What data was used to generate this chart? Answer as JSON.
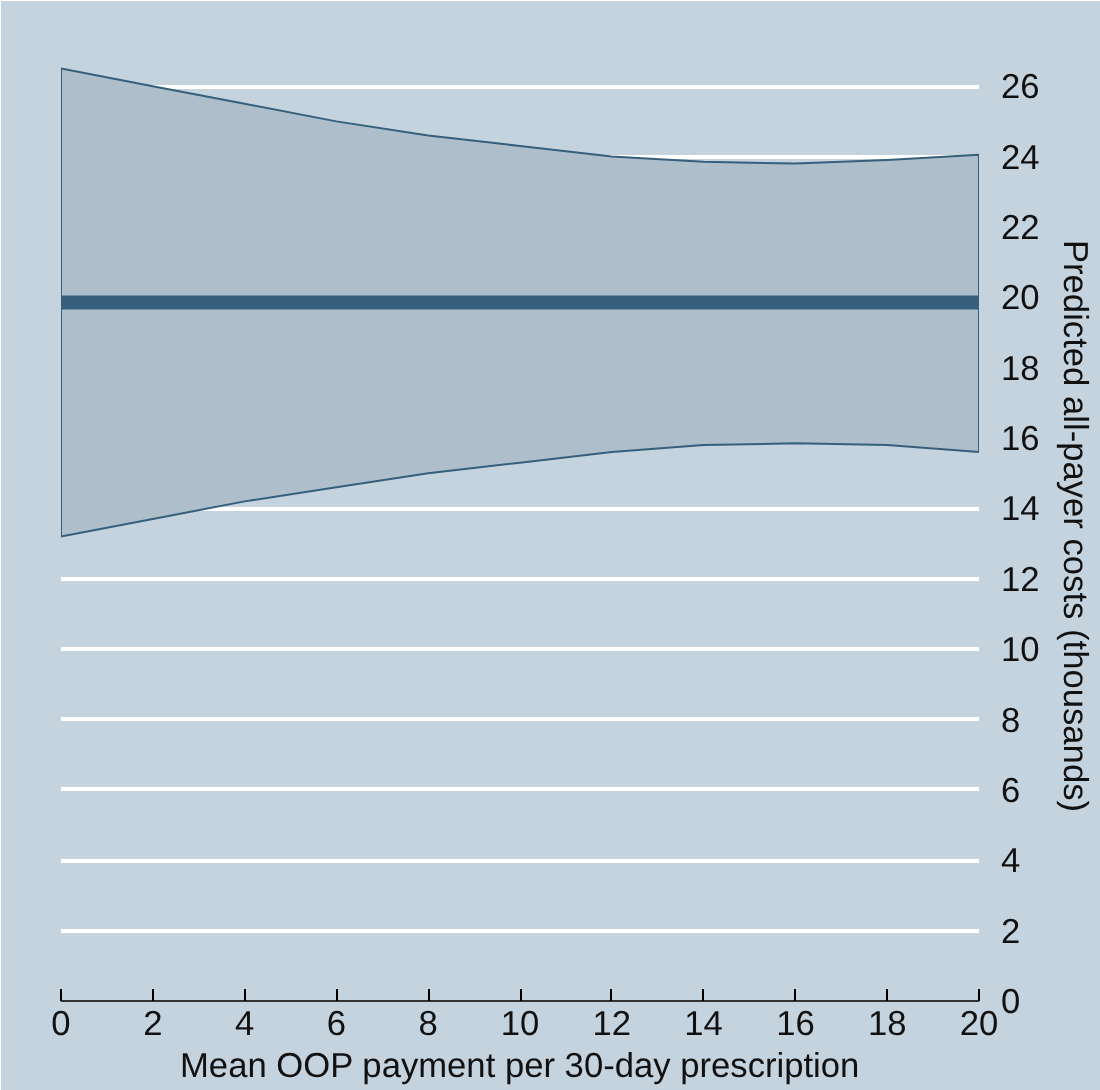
{
  "chart_data": {
    "type": "line",
    "xlabel": "Mean OOP payment per 30-day prescription",
    "ylabel": "Predicted all-payer costs (thousands)",
    "x": [
      0,
      2,
      4,
      6,
      8,
      10,
      12,
      14,
      16,
      18,
      20
    ],
    "series": [
      {
        "color": "#365f7b",
        "values": [
          19.85,
          19.85,
          19.85,
          19.85,
          19.85,
          19.85,
          19.85,
          19.85,
          19.85,
          19.85,
          19.85
        ],
        "lower": [
          13.2,
          13.7,
          14.2,
          14.6,
          15.0,
          15.3,
          15.6,
          15.8,
          15.85,
          15.8,
          15.6
        ],
        "upper": [
          26.5,
          26.0,
          25.5,
          25.0,
          24.6,
          24.3,
          24.0,
          23.85,
          23.8,
          23.9,
          24.05
        ]
      }
    ],
    "xlim": [
      0,
      20
    ],
    "xticks": [
      0,
      2,
      4,
      6,
      8,
      10,
      12,
      14,
      16,
      18,
      20
    ],
    "ylim": [
      0,
      27
    ],
    "yticks": [
      0,
      2,
      4,
      6,
      8,
      10,
      12,
      14,
      16,
      18,
      20,
      22,
      24,
      26
    ],
    "grid": "y",
    "marker": "none",
    "line_style": "solid"
  }
}
